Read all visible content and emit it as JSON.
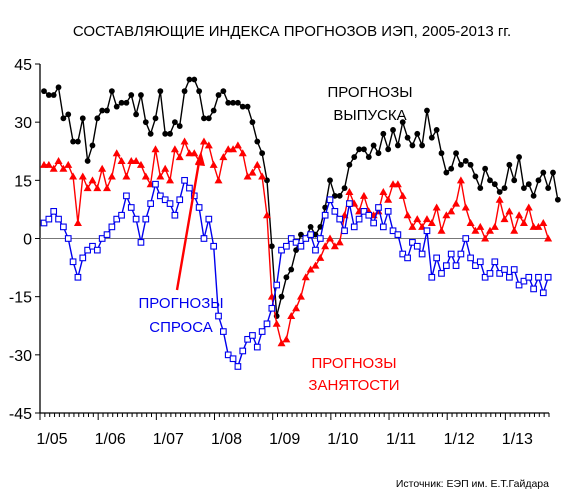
{
  "chart_data": {
    "type": "line",
    "title": "СОСТАВЛЯЮЩИЕ ИНДЕКСА ПРОГНОЗОВ ИЭП, 2005-2013 гг.",
    "source": "Источник: ЕЭП им. Е.Т.Гайдара",
    "xlabel": "",
    "ylabel": "",
    "ylim": [
      -45,
      45
    ],
    "yticks": [
      45,
      30,
      15,
      0,
      -15,
      -30,
      -45
    ],
    "xlim": [
      "2005-01",
      "2013-09"
    ],
    "xticks": [
      "1/05",
      "1/06",
      "1/07",
      "1/08",
      "1/09",
      "1/10",
      "1/11",
      "1/12",
      "1/13"
    ],
    "grid": false,
    "zero_line": true,
    "annotations": [
      {
        "lines": [
          "ПРОГНОЗЫ",
          "ВЫПУСКА"
        ],
        "color": "#000000"
      },
      {
        "lines": [
          "ПРОГНОЗЫ",
          "СПРОСА"
        ],
        "color": "#0000ee"
      },
      {
        "lines": [
          "ПРОГНОЗЫ",
          "ЗАНЯТОСТИ"
        ],
        "color": "#ff0000"
      }
    ],
    "series": [
      {
        "key": "output",
        "color": "#000000",
        "marker": "circle",
        "values": [
          38,
          37,
          37,
          39,
          31,
          32,
          25,
          25,
          31,
          20,
          24,
          31,
          33,
          33,
          38,
          34,
          35,
          35,
          37,
          32,
          37,
          30,
          27,
          31,
          38,
          27,
          27,
          30,
          29,
          38,
          41,
          41,
          38,
          31,
          31,
          33,
          37,
          38,
          35,
          35,
          35,
          34,
          34,
          30,
          25,
          22,
          15,
          -2,
          -20,
          -15,
          -10,
          -8,
          -3,
          1,
          0,
          3,
          1,
          3,
          8,
          15,
          11,
          11,
          13,
          19,
          21,
          23,
          23,
          21,
          24,
          22,
          27,
          23,
          28,
          24,
          30,
          26,
          24,
          27,
          24,
          33,
          26,
          28,
          22,
          17,
          18,
          22,
          19,
          20,
          19,
          16,
          13,
          18,
          15,
          14,
          12,
          13,
          19,
          15,
          21,
          13,
          14,
          11,
          15,
          17,
          13,
          17,
          10
        ]
      },
      {
        "key": "employment",
        "color": "#ff0000",
        "marker": "triangle",
        "values": [
          19,
          19,
          18,
          20,
          18,
          19,
          16,
          4,
          16,
          13,
          15,
          13,
          18,
          13,
          16,
          22,
          20,
          16,
          20,
          20,
          19,
          16,
          14,
          23,
          16,
          18,
          15,
          23,
          21,
          25,
          22,
          22,
          20,
          25,
          24,
          19,
          15,
          21,
          23,
          23,
          24,
          22,
          16,
          17,
          19,
          16,
          6,
          -15,
          -22,
          -27,
          -26,
          -20,
          -18,
          -15,
          -10,
          -8,
          -7,
          -5,
          -2,
          0,
          -2,
          -1,
          6,
          12,
          9,
          7,
          11,
          7,
          6,
          7,
          12,
          10,
          14,
          14,
          11,
          6,
          3,
          5,
          3,
          5,
          4,
          8,
          2,
          6,
          7,
          9,
          15,
          8,
          4,
          2,
          3,
          0,
          2,
          3,
          10,
          5,
          7,
          2,
          6,
          4,
          8,
          3,
          3,
          4,
          0
        ]
      },
      {
        "key": "demand",
        "color": "#0000ee",
        "marker": "square",
        "values": [
          4,
          5,
          7,
          5,
          3,
          0,
          -6,
          -10,
          -5,
          -3,
          -2,
          -3,
          0,
          1,
          3,
          5,
          6,
          11,
          8,
          5,
          -1,
          5,
          9,
          14,
          11,
          10,
          9,
          6,
          10,
          15,
          13,
          11,
          8,
          0,
          5,
          -2,
          -20,
          -24,
          -30,
          -31,
          -33,
          -29,
          -26,
          -25,
          -28,
          -24,
          -22,
          -18,
          -12,
          -3,
          -2,
          0,
          -1,
          -2,
          0,
          1,
          -3,
          0,
          6,
          10,
          7,
          5,
          2,
          9,
          3,
          5,
          7,
          6,
          4,
          8,
          3,
          7,
          2,
          1,
          -4,
          -5,
          -1,
          -2,
          -4,
          2,
          -10,
          -5,
          -9,
          -7,
          -4,
          -7,
          -4,
          0,
          -5,
          -7,
          -6,
          -10,
          -9,
          -6,
          -9,
          -8,
          -10,
          -8,
          -12,
          -11,
          -10,
          -13,
          -10,
          -14,
          -10
        ]
      }
    ]
  }
}
